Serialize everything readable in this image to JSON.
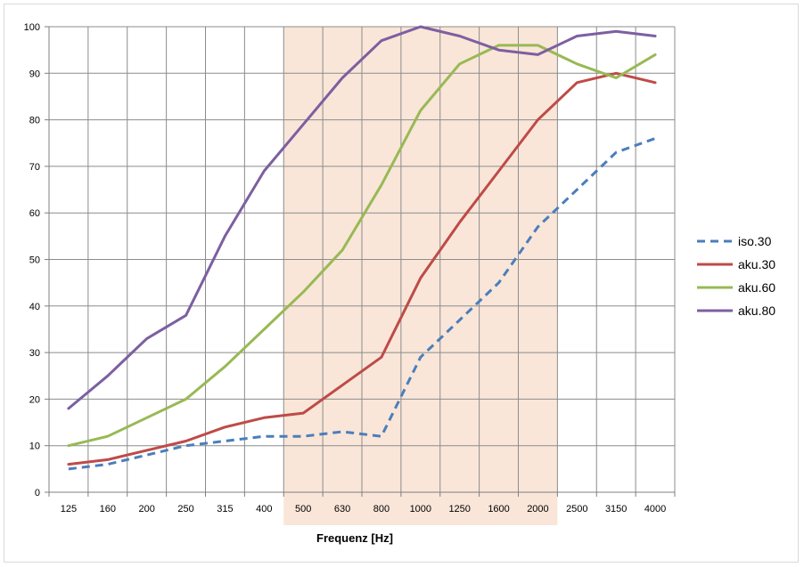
{
  "chart_data": {
    "type": "line",
    "xlabel": "Frequenz [Hz]",
    "ylabel": "",
    "categories": [
      "125",
      "160",
      "200",
      "250",
      "315",
      "400",
      "500",
      "630",
      "800",
      "1000",
      "1250",
      "1600",
      "2000",
      "2500",
      "3150",
      "4000"
    ],
    "ylim": [
      0,
      100
    ],
    "yticks": [
      0,
      10,
      20,
      30,
      40,
      50,
      60,
      70,
      80,
      90,
      100
    ],
    "grid": true,
    "legend_position": "right",
    "highlight_band": {
      "from_category": "500",
      "to_category": "2000",
      "color": "#f9e6d8"
    },
    "series": [
      {
        "name": "iso.30",
        "color": "#4a7ebb",
        "dashed": true,
        "values": [
          5,
          6,
          8,
          10,
          11,
          12,
          12,
          13,
          12,
          29,
          37,
          45,
          57,
          65,
          73,
          76
        ]
      },
      {
        "name": "aku.30",
        "color": "#be4b48",
        "dashed": false,
        "values": [
          6,
          7,
          9,
          11,
          14,
          16,
          17,
          23,
          29,
          46,
          58,
          69,
          80,
          88,
          90,
          88
        ]
      },
      {
        "name": "aku.60",
        "color": "#98b954",
        "dashed": false,
        "values": [
          10,
          12,
          16,
          20,
          27,
          35,
          43,
          52,
          66,
          82,
          92,
          96,
          96,
          92,
          89,
          94
        ]
      },
      {
        "name": "aku.80",
        "color": "#7d5fa0",
        "dashed": false,
        "values": [
          18,
          25,
          33,
          38,
          55,
          69,
          79,
          89,
          97,
          100,
          98,
          95,
          94,
          98,
          99,
          98
        ]
      }
    ]
  }
}
